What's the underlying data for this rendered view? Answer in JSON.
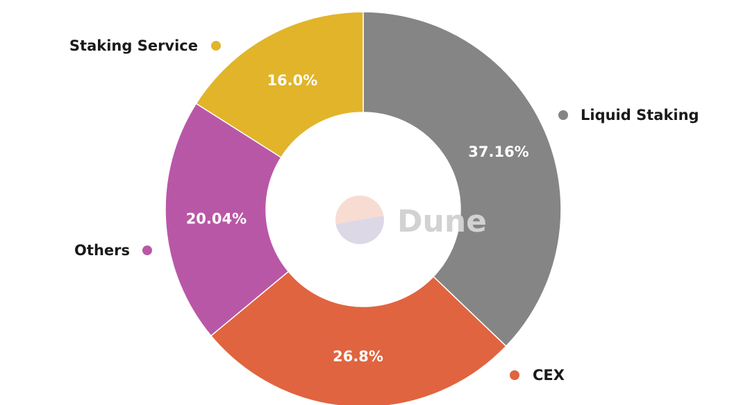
{
  "chart_data": {
    "type": "pie",
    "donut": true,
    "title": "",
    "categories": [
      "Liquid Staking",
      "CEX",
      "Others",
      "Staking Service"
    ],
    "values": [
      37.16,
      26.8,
      20.04,
      16.0
    ],
    "labels": [
      "37.16%",
      "26.8%",
      "20.04%",
      "16.0%"
    ],
    "colors": [
      "#858585",
      "#e0643f",
      "#b957a7",
      "#e1b42a"
    ]
  },
  "watermark": {
    "text": "Dune",
    "logo_colors": [
      "#f8dcd2",
      "#dcd8e6"
    ]
  }
}
